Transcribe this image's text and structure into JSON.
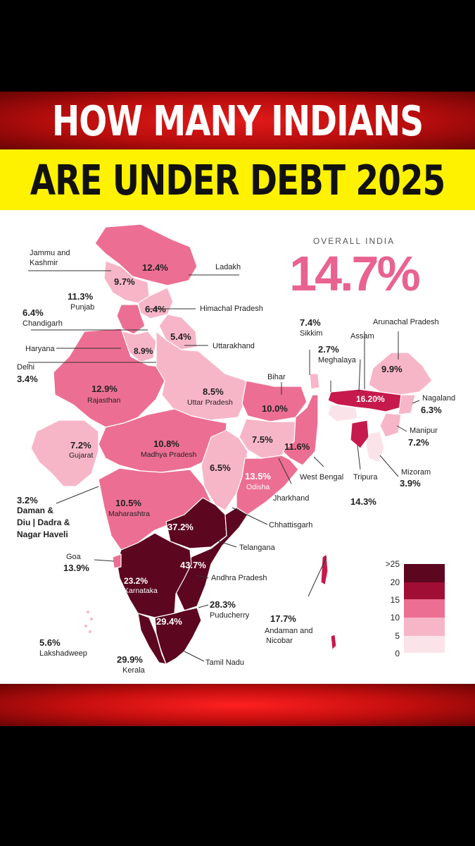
{
  "title_line1": "HOW MANY INDIANS",
  "title_line2": "ARE UNDER DEBT 2025",
  "overall_label": "OVERALL INDIA",
  "overall_value": "14.7%",
  "colors": {
    "bg0_5": "#fbe3ea",
    "bg5_10": "#f7b6c8",
    "bg10_15": "#ec6f93",
    "bg15_20": "#c61a4c",
    "bg20_25": "#a10e35",
    "bg25": "#5c0620",
    "title_red": "#c41010",
    "title_yellow": "#fff200",
    "accent": "#e8638f"
  },
  "legend": {
    "ticks": [
      ">25",
      "20",
      "15",
      "10",
      "5",
      "0"
    ]
  },
  "states": [
    {
      "name": "Jammu and Kashmir",
      "value": "9.7%"
    },
    {
      "name": "Ladakh",
      "value": "12.4%"
    },
    {
      "name": "Punjab",
      "value": "11.3%"
    },
    {
      "name": "Chandigarh",
      "value": "6.4%"
    },
    {
      "name": "Himachal Pradesh",
      "value": "6.4%"
    },
    {
      "name": "Haryana",
      "value": "8.9%"
    },
    {
      "name": "Uttarakhand",
      "value": "5.4%"
    },
    {
      "name": "Delhi",
      "value": "3.4%"
    },
    {
      "name": "Rajasthan",
      "value": "12.9%"
    },
    {
      "name": "Uttar Pradesh",
      "value": "8.5%"
    },
    {
      "name": "Bihar",
      "value": "10.0%"
    },
    {
      "name": "Sikkim",
      "value": "7.4%"
    },
    {
      "name": "Arunachal Pradesh",
      "value": "9.9%"
    },
    {
      "name": "Assam",
      "value": "16.20%"
    },
    {
      "name": "Meghalaya",
      "value": "2.7%"
    },
    {
      "name": "Nagaland",
      "value": "6.3%"
    },
    {
      "name": "Manipur",
      "value": "7.2%"
    },
    {
      "name": "Mizoram",
      "value": "3.9%"
    },
    {
      "name": "Tripura",
      "value": "14.3%"
    },
    {
      "name": "West Bengal",
      "value": "11.6%"
    },
    {
      "name": "Jharkhand",
      "value": "7.5%"
    },
    {
      "name": "Odisha",
      "value": "13.5%"
    },
    {
      "name": "Chhattisgarh",
      "value": "6.5%"
    },
    {
      "name": "Gujarat",
      "value": "7.2%"
    },
    {
      "name": "Madhya Pradesh",
      "value": "10.8%"
    },
    {
      "name": "Maharashtra",
      "value": "10.5%"
    },
    {
      "name": "Daman & Diu | Dadra & Nagar Haveli",
      "value": "3.2%"
    },
    {
      "name": "Telangana",
      "value": "37.2%"
    },
    {
      "name": "Andhra Pradesh",
      "value": "43.7%"
    },
    {
      "name": "Goa",
      "value": "13.9%"
    },
    {
      "name": "Karnataka",
      "value": "23.2%"
    },
    {
      "name": "Puducherry",
      "value": "28.3%"
    },
    {
      "name": "Tamil Nadu",
      "value": "29.4%"
    },
    {
      "name": "Kerala",
      "value": "29.9%"
    },
    {
      "name": "Lakshadweep",
      "value": "5.6%"
    },
    {
      "name": "Andaman and Nicobar",
      "value": "17.7%"
    }
  ],
  "labels": {
    "jk_name1": "Jammu and",
    "jk_name2": "Kashmir",
    "daman1": "Daman &",
    "daman2": "Diu | Dadra &",
    "daman3": "Nagar Haveli",
    "an1": "Andaman and",
    "an2": "Nicobar"
  }
}
